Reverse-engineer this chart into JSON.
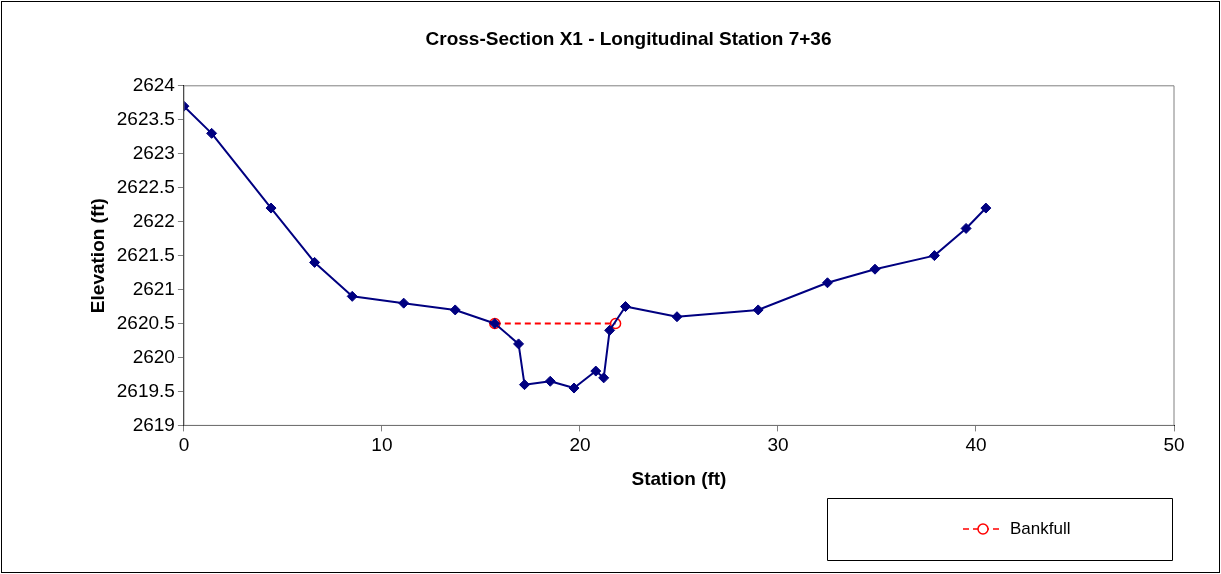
{
  "chart_data": {
    "type": "line",
    "title": "Cross-Section X1 - Longitudinal Station 7+36",
    "xlabel": "Station (ft)",
    "ylabel": "Elevation (ft)",
    "xlim": [
      0,
      50
    ],
    "xticks": [
      0,
      10,
      20,
      30,
      40,
      50
    ],
    "ylim": [
      2619,
      2624
    ],
    "yticks": [
      2619,
      2619.5,
      2620,
      2620.5,
      2621,
      2621.5,
      2622,
      2622.5,
      2623,
      2623.5,
      2624
    ],
    "grid": false,
    "legend": "bottom right",
    "series": [
      {
        "color": "#000080",
        "marker": "diamond",
        "line_style": "solid",
        "x": [
          0,
          1.4,
          4.4,
          6.6,
          8.5,
          11.1,
          13.7,
          15.7,
          16.9,
          17.2,
          18.5,
          19.7,
          20.8,
          21.2,
          21.5,
          22.3,
          24.9,
          29.0,
          32.5,
          34.9,
          37.9,
          39.5,
          40.5
        ],
        "values": [
          2623.7,
          2623.3,
          2622.2,
          2621.4,
          2620.9,
          2620.8,
          2620.7,
          2620.5,
          2620.2,
          2619.6,
          2619.65,
          2619.55,
          2619.8,
          2619.7,
          2620.4,
          2620.75,
          2620.6,
          2620.7,
          2621.1,
          2621.3,
          2621.5,
          2621.9,
          2622.2
        ]
      },
      {
        "name": "Bankfull",
        "color": "#ff0000",
        "marker": "circle",
        "line_style": "dashed",
        "x": [
          15.7,
          21.8
        ],
        "values": [
          2620.5,
          2620.5
        ]
      }
    ]
  }
}
